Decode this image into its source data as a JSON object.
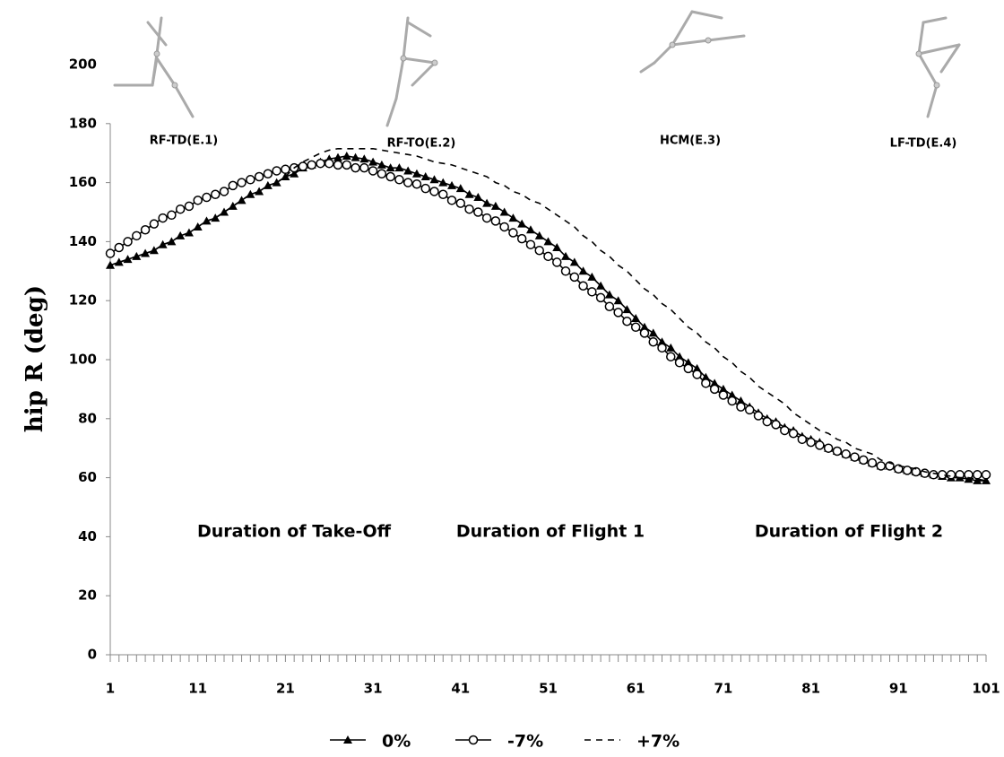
{
  "chart_data": {
    "type": "line",
    "y_label": "hip R (deg)",
    "x": [
      1,
      2,
      3,
      4,
      5,
      6,
      7,
      8,
      9,
      10,
      11,
      12,
      13,
      14,
      15,
      16,
      17,
      18,
      19,
      20,
      21,
      22,
      23,
      24,
      25,
      26,
      27,
      28,
      29,
      30,
      31,
      32,
      33,
      34,
      35,
      36,
      37,
      38,
      39,
      40,
      41,
      42,
      43,
      44,
      45,
      46,
      47,
      48,
      49,
      50,
      51,
      52,
      53,
      54,
      55,
      56,
      57,
      58,
      59,
      60,
      61,
      62,
      63,
      64,
      65,
      66,
      67,
      68,
      69,
      70,
      71,
      72,
      73,
      74,
      75,
      76,
      77,
      78,
      79,
      80,
      81,
      82,
      83,
      84,
      85,
      86,
      87,
      88,
      89,
      90,
      91,
      92,
      93,
      94,
      95,
      96,
      97,
      98,
      99,
      100,
      101
    ],
    "xlim": [
      1,
      101
    ],
    "xticks": [
      1,
      11,
      21,
      31,
      41,
      51,
      61,
      71,
      81,
      91,
      101
    ],
    "ylim": [
      0,
      200
    ],
    "yticks": [
      0,
      20,
      40,
      60,
      80,
      100,
      120,
      140,
      160,
      180,
      200
    ],
    "series": [
      {
        "name": "0%",
        "color": "#000000",
        "marker": "triangle",
        "dash": false,
        "values": [
          132,
          133,
          134,
          135,
          136,
          137,
          139,
          140,
          142,
          143,
          145,
          147,
          148,
          150,
          152,
          154,
          156,
          157,
          159,
          160,
          162,
          163,
          165,
          166,
          167,
          168,
          168.5,
          169,
          168.5,
          168,
          167,
          166,
          165,
          165,
          164,
          163,
          162,
          161,
          160,
          159,
          158,
          156,
          155,
          153,
          152,
          150,
          148,
          146,
          144,
          142,
          140,
          138,
          135,
          133,
          130,
          128,
          125,
          122,
          120,
          117,
          114,
          111,
          109,
          106,
          104,
          101,
          99,
          97,
          94,
          92,
          90,
          88,
          86,
          84,
          82,
          80,
          79,
          77,
          76,
          74,
          73,
          72,
          70,
          69,
          68,
          67,
          66,
          65,
          64,
          64,
          63,
          62.5,
          62,
          61.5,
          61,
          60.5,
          60,
          60,
          59.5,
          59,
          59
        ]
      },
      {
        "name": "-7%",
        "color": "#000000",
        "marker": "circle",
        "dash": false,
        "values": [
          136,
          138,
          140,
          142,
          144,
          146,
          148,
          149,
          151,
          152,
          154,
          155,
          156,
          157,
          159,
          160,
          161,
          162,
          163,
          164,
          164.5,
          165,
          165.5,
          166,
          166.5,
          166.5,
          166,
          166,
          165,
          165,
          164,
          163,
          162,
          161,
          160,
          159.5,
          158,
          157,
          156,
          154,
          153,
          151,
          150,
          148,
          147,
          145,
          143,
          141,
          139,
          137,
          135,
          133,
          130,
          128,
          125,
          123,
          121,
          118,
          116,
          113,
          111,
          109,
          106,
          104,
          101,
          99,
          97,
          95,
          92,
          90,
          88,
          86,
          84,
          83,
          81,
          79,
          78,
          76,
          75,
          73,
          72,
          71,
          70,
          69,
          68,
          67,
          66,
          65,
          64,
          64,
          63,
          62.5,
          62,
          61.5,
          61,
          61,
          61,
          61,
          61,
          61,
          61
        ]
      },
      {
        "name": "+7%",
        "color": "#000000",
        "marker": "none",
        "dash": true,
        "values": [
          132,
          133,
          134,
          135,
          136,
          137,
          139,
          140,
          142,
          143,
          145,
          147,
          148,
          150,
          152,
          154,
          156,
          157,
          159,
          160,
          162,
          165,
          167,
          168.5,
          170,
          171,
          171.5,
          171.5,
          171.5,
          171.5,
          171.5,
          171,
          170.5,
          170,
          169.5,
          169,
          168,
          167,
          166.5,
          166,
          165,
          164,
          163,
          162,
          160,
          159,
          157,
          156,
          154,
          153,
          151,
          149,
          147,
          145,
          142,
          140,
          137,
          135,
          132,
          130,
          127,
          124,
          122,
          119,
          117,
          114,
          111,
          109,
          106,
          104,
          101,
          99,
          96,
          94,
          91,
          89,
          87,
          85,
          82,
          80,
          78,
          76,
          75,
          73,
          72,
          70,
          69,
          68,
          66,
          65,
          64,
          63.5,
          63,
          62,
          61.5,
          61,
          60.5,
          60,
          60,
          59.5,
          59
        ]
      }
    ],
    "event_labels": [
      "RF-TD(E.1)",
      "RF-TO(E.2)",
      "HCM(E.3)",
      "LF-TD(E.4)"
    ],
    "phase_labels": [
      "Duration of Take-Off",
      "Duration of Flight 1",
      "Duration of Flight 2"
    ],
    "legend": "bottom"
  }
}
